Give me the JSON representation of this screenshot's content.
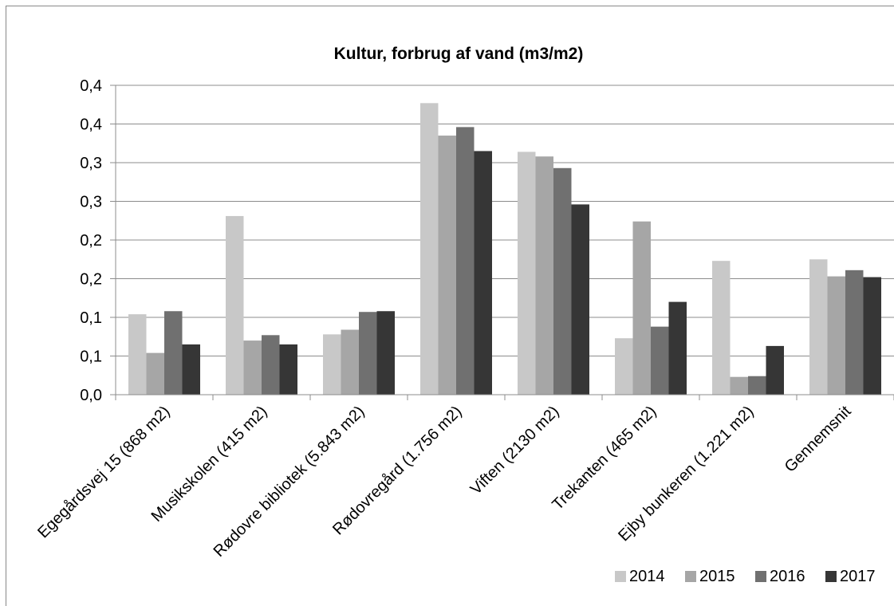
{
  "chart_data": {
    "type": "bar",
    "title": "Kultur, forbrug af vand (m3/m2)",
    "xlabel": "",
    "ylabel": "",
    "categories": [
      "Egegårdsvej 15 (868 m2)",
      "Musikskolen (415 m2)",
      "Rødovre bibliotek (5.843 m2)",
      "Rødovregård (1.756 m2)",
      "Viften (2130 m2)",
      "Trekanten (465 m2)",
      "Ejby bunkeren (1.221 m2)",
      "Gennemsnit"
    ],
    "series": [
      {
        "name": "2014",
        "color": "#c8c8c8",
        "values": [
          0.104,
          0.231,
          0.078,
          0.377,
          0.314,
          0.073,
          0.173,
          0.175
        ]
      },
      {
        "name": "2015",
        "color": "#a6a6a6",
        "values": [
          0.054,
          0.07,
          0.084,
          0.335,
          0.308,
          0.224,
          0.023,
          0.153
        ]
      },
      {
        "name": "2016",
        "color": "#707070",
        "values": [
          0.108,
          0.077,
          0.107,
          0.346,
          0.293,
          0.088,
          0.024,
          0.161
        ]
      },
      {
        "name": "2017",
        "color": "#363636",
        "values": [
          0.065,
          0.065,
          0.108,
          0.315,
          0.246,
          0.12,
          0.063,
          0.152
        ]
      }
    ],
    "ylim": [
      0,
      0.4
    ],
    "yticks": [
      0.0,
      0.05,
      0.1,
      0.15,
      0.2,
      0.25,
      0.3,
      0.35,
      0.4
    ],
    "ytick_labels": [
      "0,0",
      "0,1",
      "0,1",
      "0,2",
      "0,2",
      "0,3",
      "0,3",
      "0,4",
      "0,4"
    ],
    "grid": true,
    "legend": "bottom-right"
  }
}
